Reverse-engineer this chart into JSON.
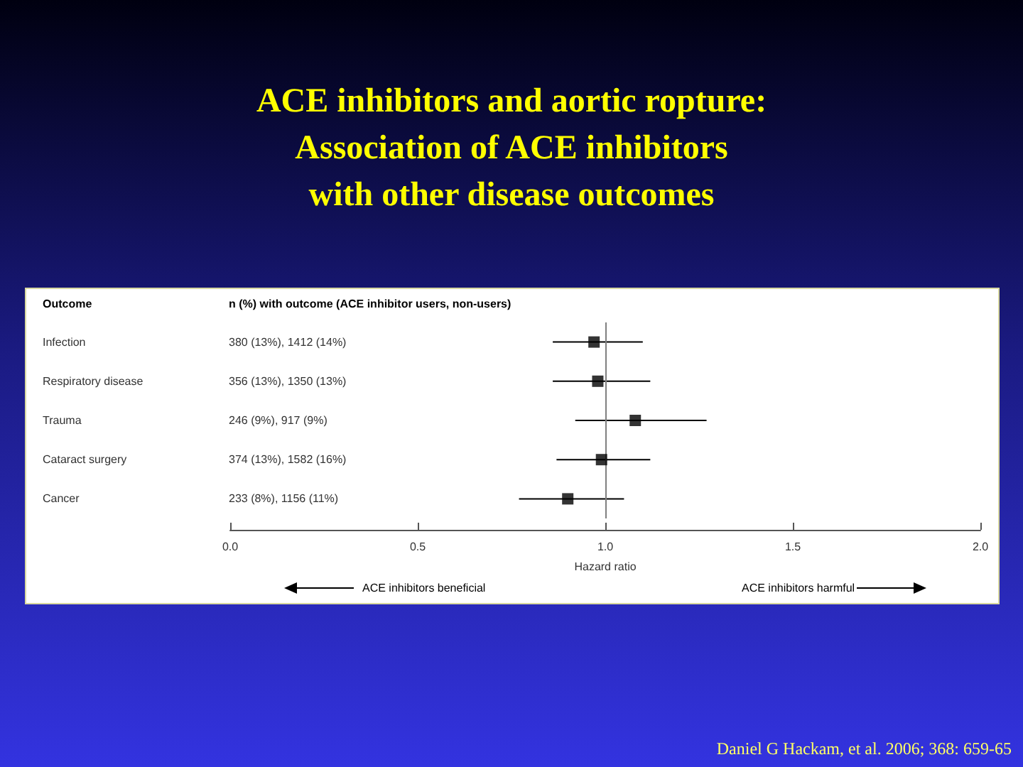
{
  "chart_data": {
    "type": "scatter",
    "title": "ACE inhibitors and aortic ropture:\nAssociation of ACE inhibitors\nwith other disease outcomes",
    "orientation": "horizontal",
    "ylabel": "Outcome",
    "xlabel": "Hazard ratio",
    "categories": [
      "Infection",
      "Respiratory disease",
      "Trauma",
      "Cataract surgery",
      "Cancer"
    ],
    "series": [
      {
        "color": "#000000",
        "values": [
          0.97,
          0.98,
          1.08,
          0.99,
          0.9
        ],
        "errors": [
          [
            0.86,
            1.1
          ],
          [
            0.86,
            1.12
          ],
          [
            0.92,
            1.27
          ],
          [
            0.87,
            1.12
          ],
          [
            0.77,
            1.05
          ]
        ]
      }
    ],
    "marker": "square",
    "grid": false,
    "xlim": [
      0,
      2
    ],
    "xticks": [
      {
        "value": 0,
        "label": "0.0"
      },
      {
        "value": 0.5,
        "label": "0.5"
      },
      {
        "value": 1,
        "label": "1.0"
      },
      {
        "value": 1.5,
        "label": "1.5"
      },
      {
        "value": 2,
        "label": "2.0"
      }
    ],
    "ref_lines": [
      {
        "axis": "x",
        "value": 1,
        "color": "#808080"
      }
    ],
    "annotations": [
      "n (%) with outcome (ACE inhibitor users, non-users)",
      "ACE inhibitors beneficial",
      "ACE inhibitors harmful",
      "Daniel G Hackam, et al. 2006; 368: 659-65",
      "380 (13%), 1412 (14%)",
      "356 (13%), 1350 (13%)",
      "246 (9%), 917 (9%)",
      "374 (13%), 1582 (16%)",
      "233 (8%), 1156 (11%)"
    ]
  }
}
